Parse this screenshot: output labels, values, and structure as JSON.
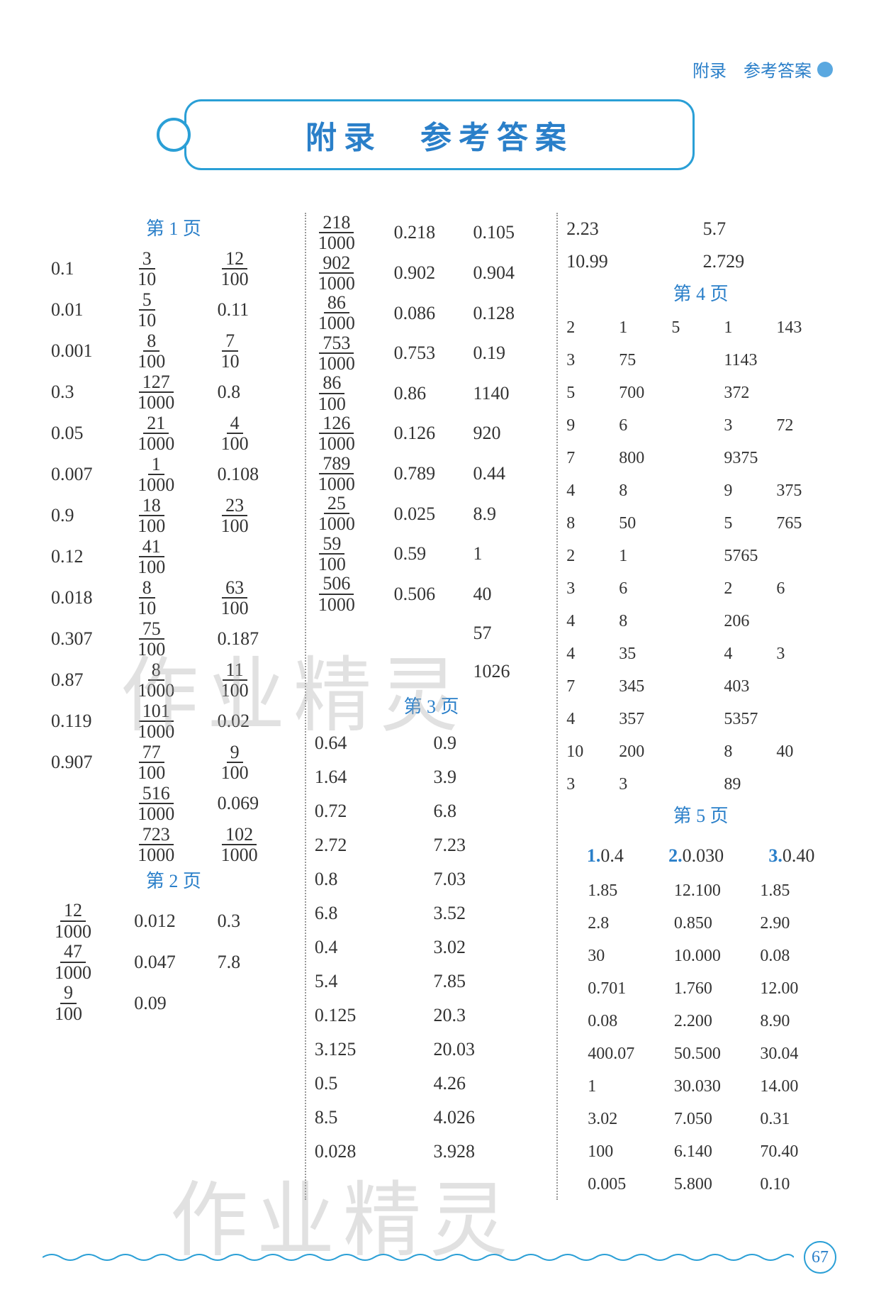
{
  "header_right": "附录　参考答案",
  "title": "附录　参考答案",
  "page_number": "67",
  "watermark": "作业精灵",
  "labels": {
    "p1": "第 1 页",
    "p2": "第 2 页",
    "p3": "第 3 页",
    "p4": "第 4 页",
    "p5": "第 5 页"
  },
  "col1_p1": [
    [
      "0.1",
      "3",
      "10",
      "12",
      "100"
    ],
    [
      "0.01",
      "5",
      "10",
      "0.11",
      ""
    ],
    [
      "0.001",
      "8",
      "100",
      "7",
      "10"
    ],
    [
      "0.3",
      "127",
      "1000",
      "0.8",
      ""
    ],
    [
      "0.05",
      "21",
      "1000",
      "4",
      "100"
    ],
    [
      "0.007",
      "1",
      "1000",
      "0.108",
      ""
    ],
    [
      "0.9",
      "18",
      "100",
      "23",
      "100"
    ],
    [
      "0.12",
      "41",
      "100",
      "",
      ""
    ],
    [
      "0.018",
      "8",
      "10",
      "63",
      "100"
    ],
    [
      "0.307",
      "75",
      "100",
      "0.187",
      ""
    ],
    [
      "0.87",
      "8",
      "1000",
      "11",
      "100"
    ],
    [
      "0.119",
      "101",
      "1000",
      "0.02",
      ""
    ],
    [
      "0.907",
      "77",
      "100",
      "9",
      "100"
    ],
    [
      "",
      "516",
      "1000",
      "0.069",
      ""
    ],
    [
      "",
      "723",
      "1000",
      "102",
      "1000"
    ]
  ],
  "col1_p2": [
    [
      "12",
      "1000",
      "0.012",
      "0.3"
    ],
    [
      "47",
      "1000",
      "0.047",
      "7.8"
    ],
    [
      "9",
      "100",
      "0.09",
      ""
    ]
  ],
  "col2_top": [
    [
      "218",
      "1000",
      "0.218",
      "0.105"
    ],
    [
      "902",
      "1000",
      "0.902",
      "0.904"
    ],
    [
      "86",
      "1000",
      "0.086",
      "0.128"
    ],
    [
      "753",
      "1000",
      "0.753",
      "0.19"
    ],
    [
      "86",
      "100",
      "0.86",
      "1140"
    ],
    [
      "126",
      "1000",
      "0.126",
      "920"
    ],
    [
      "789",
      "1000",
      "0.789",
      "0.44"
    ],
    [
      "25",
      "1000",
      "0.025",
      "8.9"
    ],
    [
      "59",
      "100",
      "0.59",
      "1"
    ],
    [
      "506",
      "1000",
      "0.506",
      "40"
    ],
    [
      "",
      "",
      "",
      "57"
    ],
    [
      "",
      "",
      "",
      "1026"
    ]
  ],
  "col2_p3": [
    [
      "0.64",
      "0.9"
    ],
    [
      "1.64",
      "3.9"
    ],
    [
      "0.72",
      "6.8"
    ],
    [
      "2.72",
      "7.23"
    ],
    [
      "0.8",
      "7.03"
    ],
    [
      "6.8",
      "3.52"
    ],
    [
      "0.4",
      "3.02"
    ],
    [
      "5.4",
      "7.85"
    ],
    [
      "0.125",
      "20.3"
    ],
    [
      "3.125",
      "20.03"
    ],
    [
      "0.5",
      "4.26"
    ],
    [
      "8.5",
      "4.026"
    ],
    [
      "0.028",
      "3.928"
    ]
  ],
  "col3_top": [
    [
      "2.23",
      "5.7"
    ],
    [
      "10.99",
      "2.729"
    ]
  ],
  "col3_p4": [
    [
      "2",
      "1",
      "5",
      "1",
      "143"
    ],
    [
      "3",
      "75",
      "",
      "1143",
      ""
    ],
    [
      "5",
      "700",
      "",
      "372",
      ""
    ],
    [
      "9",
      "6",
      "",
      "3",
      "72"
    ],
    [
      "7",
      "800",
      "",
      "9375",
      ""
    ],
    [
      "4",
      "8",
      "",
      "9",
      "375"
    ],
    [
      "8",
      "50",
      "",
      "5",
      "765"
    ],
    [
      "2",
      "1",
      "",
      "5765",
      ""
    ],
    [
      "3",
      "6",
      "",
      "2",
      "6"
    ],
    [
      "4",
      "8",
      "",
      "206",
      ""
    ],
    [
      "4",
      "35",
      "",
      "4",
      "3"
    ],
    [
      "7",
      "345",
      "",
      "403",
      ""
    ],
    [
      "4",
      "357",
      "",
      "5357",
      ""
    ],
    [
      "10",
      "200",
      "",
      "8",
      "40"
    ],
    [
      "3",
      "3",
      "",
      "89",
      ""
    ]
  ],
  "col3_p5_first": [
    "1.",
    "0.4",
    "2.",
    "0.030",
    "3.",
    "0.40"
  ],
  "col3_p5": [
    [
      "1.85",
      "12.100",
      "1.85"
    ],
    [
      "2.8",
      "0.850",
      "2.90"
    ],
    [
      "30",
      "10.000",
      "0.08"
    ],
    [
      "0.701",
      "1.760",
      "12.00"
    ],
    [
      "0.08",
      "2.200",
      "8.90"
    ],
    [
      "400.07",
      "50.500",
      "30.04"
    ],
    [
      "1",
      "30.030",
      "14.00"
    ],
    [
      "3.02",
      "7.050",
      "0.31"
    ],
    [
      "100",
      "6.140",
      "70.40"
    ],
    [
      "0.005",
      "5.800",
      "0.10"
    ]
  ],
  "colors": {
    "accent": "#2a7fc9",
    "border": "#2a9fd6",
    "text": "#333333",
    "watermark": "#aaaaaa"
  }
}
